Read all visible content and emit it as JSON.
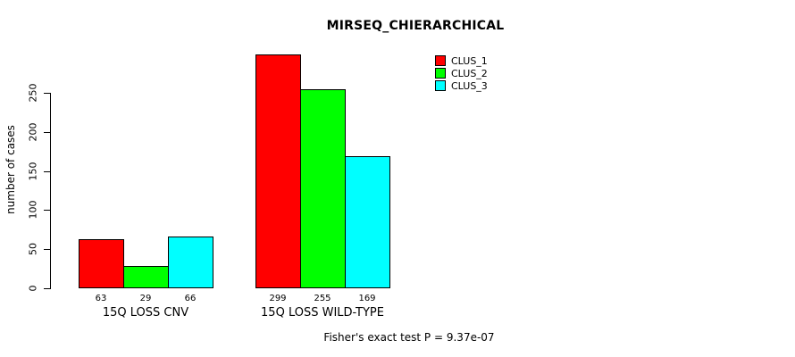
{
  "chart_data": {
    "type": "bar",
    "title": "MIRSEQ_CHIERARCHICAL",
    "ylabel": "number of cases",
    "xlabel": "",
    "categories": [
      "15Q LOSS CNV",
      "15Q LOSS WILD-TYPE"
    ],
    "series": [
      {
        "name": "CLUS_1",
        "color": "#FF0000",
        "values": [
          63,
          299
        ]
      },
      {
        "name": "CLUS_2",
        "color": "#00FF00",
        "values": [
          29,
          255
        ]
      },
      {
        "name": "CLUS_3",
        "color": "#00FFFF",
        "values": [
          66,
          169
        ]
      }
    ],
    "yticks": [
      0,
      50,
      100,
      150,
      200,
      250
    ],
    "ylim": [
      0,
      299
    ],
    "grid": false,
    "legend_position": "top-right",
    "bar_outline_color": "#000000",
    "show_value_labels": true,
    "annotation": "Fisher's exact test P = 9.37e-07"
  }
}
